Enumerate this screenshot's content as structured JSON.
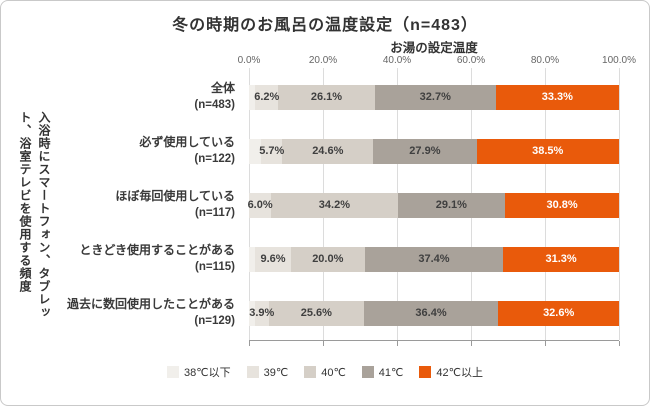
{
  "title": "冬の時期のお風呂の温度設定（n=483）",
  "x_axis_title": "お湯の設定温度",
  "y_axis_title": "入浴時にスマートフォン、タブレット、浴室テレビを使用する頻度",
  "chart_data": {
    "type": "bar",
    "stacked": true,
    "orientation": "horizontal",
    "xlim": [
      0,
      100
    ],
    "x_tick_labels": [
      "0.0%",
      "20.0%",
      "40.0%",
      "60.0%",
      "80.0%",
      "100.0%"
    ],
    "grid": true,
    "legend_position": "bottom",
    "categories": [
      {
        "label": "全体",
        "n": "(n=483)"
      },
      {
        "label": "必ず使用している",
        "n": "(n=122)"
      },
      {
        "label": "ほぼ毎回使用している",
        "n": "(n=117)"
      },
      {
        "label": "ときどき使用することがある",
        "n": "(n=115)"
      },
      {
        "label": "過去に数回使用したことがある",
        "n": "(n=129)"
      }
    ],
    "series": [
      {
        "key": "38c-under",
        "name": "38℃以下",
        "color": "#f1efeb",
        "label_color": "#3f3f3f",
        "show_labels": false,
        "values": [
          1.7,
          3.3,
          0.0,
          1.7,
          1.5
        ]
      },
      {
        "key": "39c",
        "name": "39℃",
        "color": "#e7e3dd",
        "label_color": "#3f3f3f",
        "show_labels": true,
        "values": [
          6.2,
          5.7,
          6.0,
          9.6,
          3.9
        ]
      },
      {
        "key": "40c",
        "name": "40℃",
        "color": "#d5cfc7",
        "label_color": "#3f3f3f",
        "show_labels": true,
        "values": [
          26.1,
          24.6,
          34.2,
          20.0,
          25.6
        ]
      },
      {
        "key": "41c",
        "name": "41℃",
        "color": "#a9a29a",
        "label_color": "#3f3f3f",
        "show_labels": true,
        "values": [
          32.7,
          27.9,
          29.1,
          37.4,
          36.4
        ]
      },
      {
        "key": "42c-over",
        "name": "42℃以上",
        "color": "#e95a0b",
        "label_color": "#ffffff",
        "show_labels": true,
        "values": [
          33.3,
          38.5,
          30.8,
          31.3,
          32.6
        ]
      }
    ]
  }
}
